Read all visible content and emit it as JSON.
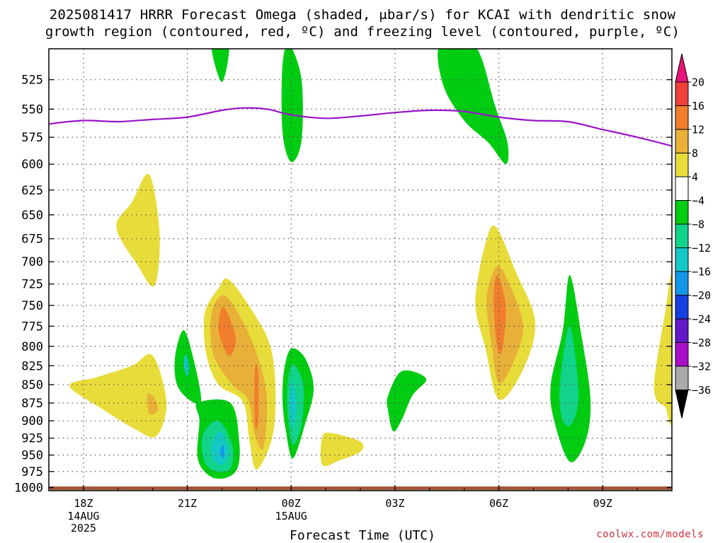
{
  "title_line1": "2025081417 HRRR Forecast Omega (shaded, μbar/s) for KCAI with dendritic snow",
  "title_line2": "growth region (contoured, red, ºC) and freezing level (contoured, purple, ºC)",
  "credit": "coolwx.com/models",
  "chart_data": {
    "type": "heatmap",
    "title": "2025081417 HRRR Forecast Omega (shaded, μbar/s) for KCAI with dendritic snow growth region (contoured, red, ºC) and freezing level (contoured, purple, ºC)",
    "xlabel": "Forecast Time (UTC)",
    "ylabel": "",
    "x_ticks": [
      {
        "label": "18Z",
        "sub": [
          "14AUG",
          "2025"
        ],
        "hour": 18
      },
      {
        "label": "21Z",
        "sub": [],
        "hour": 21
      },
      {
        "label": "00Z",
        "sub": [
          "15AUG"
        ],
        "hour": 24
      },
      {
        "label": "03Z",
        "sub": [],
        "hour": 27
      },
      {
        "label": "06Z",
        "sub": [],
        "hour": 30
      },
      {
        "label": "09Z",
        "sub": [],
        "hour": 33
      }
    ],
    "xlim": [
      17,
      35
    ],
    "y_levels": [
      525,
      550,
      575,
      600,
      625,
      650,
      675,
      700,
      725,
      750,
      775,
      800,
      825,
      850,
      875,
      900,
      925,
      950,
      975,
      1000
    ],
    "y_scale": "log-pressure",
    "ylim": [
      500,
      1005
    ],
    "grid": true,
    "colorbar": {
      "levels": [
        20,
        16,
        12,
        8,
        4,
        -4,
        -8,
        -12,
        -16,
        -20,
        -24,
        -28,
        -32,
        -36
      ],
      "colors": [
        "#e8157a",
        "#f0403c",
        "#f07e2c",
        "#e8b038",
        "#e8dc3a",
        "#ffffff",
        "#00cc12",
        "#12d38a",
        "#14c8c8",
        "#1496e8",
        "#1440e0",
        "#6418c8",
        "#a810c8",
        "#aaaaaa",
        "#000000"
      ]
    },
    "freezing_level": {
      "color": "#9a14c8",
      "points": [
        [
          17,
          563
        ],
        [
          18,
          560
        ],
        [
          19,
          561
        ],
        [
          20,
          559
        ],
        [
          21,
          557
        ],
        [
          22,
          551
        ],
        [
          22.6,
          549
        ],
        [
          23.3,
          550
        ],
        [
          24,
          555
        ],
        [
          25,
          558
        ],
        [
          26,
          556
        ],
        [
          27,
          553
        ],
        [
          28,
          551
        ],
        [
          29,
          552
        ],
        [
          30,
          557
        ],
        [
          31,
          560
        ],
        [
          32,
          561
        ],
        [
          33,
          568
        ],
        [
          34,
          575
        ],
        [
          35,
          583
        ]
      ]
    },
    "omega_regions": [
      {
        "value": 6,
        "points": [
          [
            18.95,
            663
          ],
          [
            19.4,
            637
          ],
          [
            19.9,
            610
          ],
          [
            20.2,
            670
          ],
          [
            20.05,
            727
          ],
          [
            19.55,
            703
          ]
        ]
      },
      {
        "value": 6,
        "points": [
          [
            17.6,
            852
          ],
          [
            18.4,
            840
          ],
          [
            19.4,
            825
          ],
          [
            20.0,
            812
          ],
          [
            20.4,
            875
          ],
          [
            20.1,
            922
          ],
          [
            19.5,
            912
          ],
          [
            18.6,
            885
          ]
        ]
      },
      {
        "value": 10,
        "points": [
          [
            19.85,
            863
          ],
          [
            20.05,
            868
          ],
          [
            20.15,
            885
          ],
          [
            19.9,
            890
          ]
        ]
      },
      {
        "value": -6,
        "points": [
          [
            20.65,
            812
          ],
          [
            20.9,
            780
          ],
          [
            21.2,
            820
          ],
          [
            21.4,
            872
          ],
          [
            21.1,
            872
          ],
          [
            20.7,
            850
          ]
        ]
      },
      {
        "value": -14,
        "points": [
          [
            20.95,
            810
          ],
          [
            21.05,
            825
          ],
          [
            21.0,
            840
          ],
          [
            20.9,
            825
          ]
        ]
      },
      {
        "value": 6,
        "points": [
          [
            21.5,
            760
          ],
          [
            21.9,
            730
          ],
          [
            22.2,
            720
          ],
          [
            22.9,
            758
          ],
          [
            23.4,
            800
          ],
          [
            23.55,
            860
          ],
          [
            23.45,
            925
          ],
          [
            23.0,
            972
          ],
          [
            22.8,
            930
          ],
          [
            22.6,
            873
          ],
          [
            21.9,
            850
          ],
          [
            21.55,
            810
          ]
        ]
      },
      {
        "value": 10,
        "points": [
          [
            21.7,
            760
          ],
          [
            22.05,
            738
          ],
          [
            22.55,
            765
          ],
          [
            23.05,
            815
          ],
          [
            23.3,
            870
          ],
          [
            23.2,
            940
          ],
          [
            22.95,
            920
          ],
          [
            22.75,
            870
          ],
          [
            22.3,
            850
          ],
          [
            21.75,
            810
          ]
        ]
      },
      {
        "value": 14,
        "points": [
          [
            21.9,
            780
          ],
          [
            22.05,
            752
          ],
          [
            22.4,
            790
          ],
          [
            22.2,
            812
          ]
        ]
      },
      {
        "value": 14,
        "points": [
          [
            22.95,
            830
          ],
          [
            23.05,
            835
          ],
          [
            23.05,
            900
          ],
          [
            22.95,
            905
          ]
        ]
      },
      {
        "value": -6,
        "points": [
          [
            21.3,
            875
          ],
          [
            22.25,
            875
          ],
          [
            22.5,
            930
          ],
          [
            22.45,
            970
          ],
          [
            22.1,
            985
          ],
          [
            21.65,
            982
          ],
          [
            21.3,
            955
          ],
          [
            21.35,
            900
          ]
        ]
      },
      {
        "value": -10,
        "points": [
          [
            21.45,
            920
          ],
          [
            21.9,
            900
          ],
          [
            22.3,
            935
          ],
          [
            22.25,
            970
          ],
          [
            21.85,
            975
          ],
          [
            21.5,
            960
          ]
        ]
      },
      {
        "value": -14,
        "points": [
          [
            21.7,
            935
          ],
          [
            21.95,
            915
          ],
          [
            22.2,
            945
          ],
          [
            22.0,
            965
          ],
          [
            21.75,
            955
          ]
        ]
      },
      {
        "value": -18,
        "points": [
          [
            21.95,
            945
          ],
          [
            22.05,
            935
          ],
          [
            22.05,
            955
          ]
        ]
      },
      {
        "value": -6,
        "points": [
          [
            23.8,
            830
          ],
          [
            24.0,
            803
          ],
          [
            24.4,
            815
          ],
          [
            24.65,
            855
          ],
          [
            24.4,
            905
          ],
          [
            24.05,
            955
          ],
          [
            23.85,
            915
          ],
          [
            23.75,
            870
          ]
        ]
      },
      {
        "value": -10,
        "points": [
          [
            23.9,
            850
          ],
          [
            24.05,
            823
          ],
          [
            24.35,
            850
          ],
          [
            24.3,
            905
          ],
          [
            24.05,
            935
          ],
          [
            23.9,
            890
          ]
        ]
      },
      {
        "value": -14,
        "points": [
          [
            23.95,
            875
          ],
          [
            24.05,
            845
          ],
          [
            24.15,
            880
          ],
          [
            24.05,
            910
          ]
        ]
      },
      {
        "value": -6,
        "points": [
          [
            23.75,
            513
          ],
          [
            23.95,
            497
          ],
          [
            24.3,
            525
          ],
          [
            24.3,
            578
          ],
          [
            24.0,
            598
          ],
          [
            23.75,
            570
          ]
        ]
      },
      {
        "value": -6,
        "points": [
          [
            21.7,
            497
          ],
          [
            22.2,
            497
          ],
          [
            22.0,
            527
          ]
        ]
      },
      {
        "value": -6,
        "points": [
          [
            28.3,
            497
          ],
          [
            29.3,
            497
          ],
          [
            29.9,
            548
          ],
          [
            30.25,
            580
          ],
          [
            30.2,
            600
          ],
          [
            29.7,
            580
          ],
          [
            29.0,
            560
          ],
          [
            28.4,
            530
          ]
        ]
      },
      {
        "value": 6,
        "points": [
          [
            24.9,
            923
          ],
          [
            25.2,
            918
          ],
          [
            26.0,
            930
          ],
          [
            26.0,
            945
          ],
          [
            25.4,
            958
          ],
          [
            24.9,
            965
          ]
        ]
      },
      {
        "value": -6,
        "points": [
          [
            26.8,
            865
          ],
          [
            27.2,
            832
          ],
          [
            27.9,
            842
          ],
          [
            27.5,
            865
          ],
          [
            27.2,
            898
          ],
          [
            26.95,
            915
          ],
          [
            26.8,
            885
          ]
        ]
      },
      {
        "value": 6,
        "points": [
          [
            29.35,
            730
          ],
          [
            29.6,
            682
          ],
          [
            29.9,
            662
          ],
          [
            30.5,
            712
          ],
          [
            31.05,
            770
          ],
          [
            30.7,
            830
          ],
          [
            30.0,
            870
          ],
          [
            29.6,
            800
          ],
          [
            29.35,
            760
          ]
        ]
      },
      {
        "value": 10,
        "points": [
          [
            29.65,
            742
          ],
          [
            29.95,
            705
          ],
          [
            30.3,
            725
          ],
          [
            30.7,
            775
          ],
          [
            30.4,
            822
          ],
          [
            30.0,
            848
          ],
          [
            29.8,
            800
          ]
        ]
      },
      {
        "value": 14,
        "points": [
          [
            29.85,
            745
          ],
          [
            29.95,
            715
          ],
          [
            30.2,
            750
          ],
          [
            30.1,
            805
          ],
          [
            29.95,
            800
          ]
        ]
      },
      {
        "value": -6,
        "points": [
          [
            31.5,
            850
          ],
          [
            31.85,
            780
          ],
          [
            32.05,
            715
          ],
          [
            32.4,
            790
          ],
          [
            32.65,
            872
          ],
          [
            32.5,
            930
          ],
          [
            32.05,
            960
          ],
          [
            31.6,
            900
          ]
        ]
      },
      {
        "value": -10,
        "points": [
          [
            31.75,
            860
          ],
          [
            31.9,
            800
          ],
          [
            32.05,
            775
          ],
          [
            32.2,
            810
          ],
          [
            32.3,
            870
          ],
          [
            32.1,
            905
          ],
          [
            31.85,
            900
          ]
        ]
      },
      {
        "value": 6,
        "points": [
          [
            34.5,
            840
          ],
          [
            34.8,
            760
          ],
          [
            35.0,
            720
          ],
          [
            35.0,
            895
          ],
          [
            34.8,
            880
          ],
          [
            34.55,
            870
          ]
        ]
      }
    ]
  }
}
